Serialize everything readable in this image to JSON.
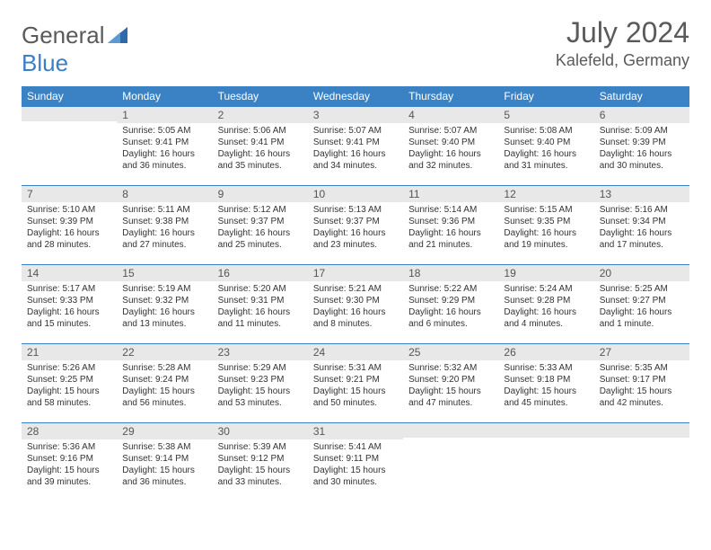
{
  "brand": {
    "name_part1": "General",
    "name_part2": "Blue",
    "text_color": "#5a5a5a",
    "accent_color": "#3b7fc4"
  },
  "title": "July 2024",
  "location": "Kalefeld, Germany",
  "header_bg": "#3b82c4",
  "header_fg": "#ffffff",
  "daynum_bg": "#e8e8e8",
  "row_border": "#3b82c4",
  "weekdays": [
    "Sunday",
    "Monday",
    "Tuesday",
    "Wednesday",
    "Thursday",
    "Friday",
    "Saturday"
  ],
  "weeks": [
    [
      {
        "n": "",
        "sr": "",
        "ss": "",
        "dl": ""
      },
      {
        "n": "1",
        "sr": "Sunrise: 5:05 AM",
        "ss": "Sunset: 9:41 PM",
        "dl": "Daylight: 16 hours and 36 minutes."
      },
      {
        "n": "2",
        "sr": "Sunrise: 5:06 AM",
        "ss": "Sunset: 9:41 PM",
        "dl": "Daylight: 16 hours and 35 minutes."
      },
      {
        "n": "3",
        "sr": "Sunrise: 5:07 AM",
        "ss": "Sunset: 9:41 PM",
        "dl": "Daylight: 16 hours and 34 minutes."
      },
      {
        "n": "4",
        "sr": "Sunrise: 5:07 AM",
        "ss": "Sunset: 9:40 PM",
        "dl": "Daylight: 16 hours and 32 minutes."
      },
      {
        "n": "5",
        "sr": "Sunrise: 5:08 AM",
        "ss": "Sunset: 9:40 PM",
        "dl": "Daylight: 16 hours and 31 minutes."
      },
      {
        "n": "6",
        "sr": "Sunrise: 5:09 AM",
        "ss": "Sunset: 9:39 PM",
        "dl": "Daylight: 16 hours and 30 minutes."
      }
    ],
    [
      {
        "n": "7",
        "sr": "Sunrise: 5:10 AM",
        "ss": "Sunset: 9:39 PM",
        "dl": "Daylight: 16 hours and 28 minutes."
      },
      {
        "n": "8",
        "sr": "Sunrise: 5:11 AM",
        "ss": "Sunset: 9:38 PM",
        "dl": "Daylight: 16 hours and 27 minutes."
      },
      {
        "n": "9",
        "sr": "Sunrise: 5:12 AM",
        "ss": "Sunset: 9:37 PM",
        "dl": "Daylight: 16 hours and 25 minutes."
      },
      {
        "n": "10",
        "sr": "Sunrise: 5:13 AM",
        "ss": "Sunset: 9:37 PM",
        "dl": "Daylight: 16 hours and 23 minutes."
      },
      {
        "n": "11",
        "sr": "Sunrise: 5:14 AM",
        "ss": "Sunset: 9:36 PM",
        "dl": "Daylight: 16 hours and 21 minutes."
      },
      {
        "n": "12",
        "sr": "Sunrise: 5:15 AM",
        "ss": "Sunset: 9:35 PM",
        "dl": "Daylight: 16 hours and 19 minutes."
      },
      {
        "n": "13",
        "sr": "Sunrise: 5:16 AM",
        "ss": "Sunset: 9:34 PM",
        "dl": "Daylight: 16 hours and 17 minutes."
      }
    ],
    [
      {
        "n": "14",
        "sr": "Sunrise: 5:17 AM",
        "ss": "Sunset: 9:33 PM",
        "dl": "Daylight: 16 hours and 15 minutes."
      },
      {
        "n": "15",
        "sr": "Sunrise: 5:19 AM",
        "ss": "Sunset: 9:32 PM",
        "dl": "Daylight: 16 hours and 13 minutes."
      },
      {
        "n": "16",
        "sr": "Sunrise: 5:20 AM",
        "ss": "Sunset: 9:31 PM",
        "dl": "Daylight: 16 hours and 11 minutes."
      },
      {
        "n": "17",
        "sr": "Sunrise: 5:21 AM",
        "ss": "Sunset: 9:30 PM",
        "dl": "Daylight: 16 hours and 8 minutes."
      },
      {
        "n": "18",
        "sr": "Sunrise: 5:22 AM",
        "ss": "Sunset: 9:29 PM",
        "dl": "Daylight: 16 hours and 6 minutes."
      },
      {
        "n": "19",
        "sr": "Sunrise: 5:24 AM",
        "ss": "Sunset: 9:28 PM",
        "dl": "Daylight: 16 hours and 4 minutes."
      },
      {
        "n": "20",
        "sr": "Sunrise: 5:25 AM",
        "ss": "Sunset: 9:27 PM",
        "dl": "Daylight: 16 hours and 1 minute."
      }
    ],
    [
      {
        "n": "21",
        "sr": "Sunrise: 5:26 AM",
        "ss": "Sunset: 9:25 PM",
        "dl": "Daylight: 15 hours and 58 minutes."
      },
      {
        "n": "22",
        "sr": "Sunrise: 5:28 AM",
        "ss": "Sunset: 9:24 PM",
        "dl": "Daylight: 15 hours and 56 minutes."
      },
      {
        "n": "23",
        "sr": "Sunrise: 5:29 AM",
        "ss": "Sunset: 9:23 PM",
        "dl": "Daylight: 15 hours and 53 minutes."
      },
      {
        "n": "24",
        "sr": "Sunrise: 5:31 AM",
        "ss": "Sunset: 9:21 PM",
        "dl": "Daylight: 15 hours and 50 minutes."
      },
      {
        "n": "25",
        "sr": "Sunrise: 5:32 AM",
        "ss": "Sunset: 9:20 PM",
        "dl": "Daylight: 15 hours and 47 minutes."
      },
      {
        "n": "26",
        "sr": "Sunrise: 5:33 AM",
        "ss": "Sunset: 9:18 PM",
        "dl": "Daylight: 15 hours and 45 minutes."
      },
      {
        "n": "27",
        "sr": "Sunrise: 5:35 AM",
        "ss": "Sunset: 9:17 PM",
        "dl": "Daylight: 15 hours and 42 minutes."
      }
    ],
    [
      {
        "n": "28",
        "sr": "Sunrise: 5:36 AM",
        "ss": "Sunset: 9:16 PM",
        "dl": "Daylight: 15 hours and 39 minutes."
      },
      {
        "n": "29",
        "sr": "Sunrise: 5:38 AM",
        "ss": "Sunset: 9:14 PM",
        "dl": "Daylight: 15 hours and 36 minutes."
      },
      {
        "n": "30",
        "sr": "Sunrise: 5:39 AM",
        "ss": "Sunset: 9:12 PM",
        "dl": "Daylight: 15 hours and 33 minutes."
      },
      {
        "n": "31",
        "sr": "Sunrise: 5:41 AM",
        "ss": "Sunset: 9:11 PM",
        "dl": "Daylight: 15 hours and 30 minutes."
      },
      {
        "n": "",
        "sr": "",
        "ss": "",
        "dl": ""
      },
      {
        "n": "",
        "sr": "",
        "ss": "",
        "dl": ""
      },
      {
        "n": "",
        "sr": "",
        "ss": "",
        "dl": ""
      }
    ]
  ]
}
